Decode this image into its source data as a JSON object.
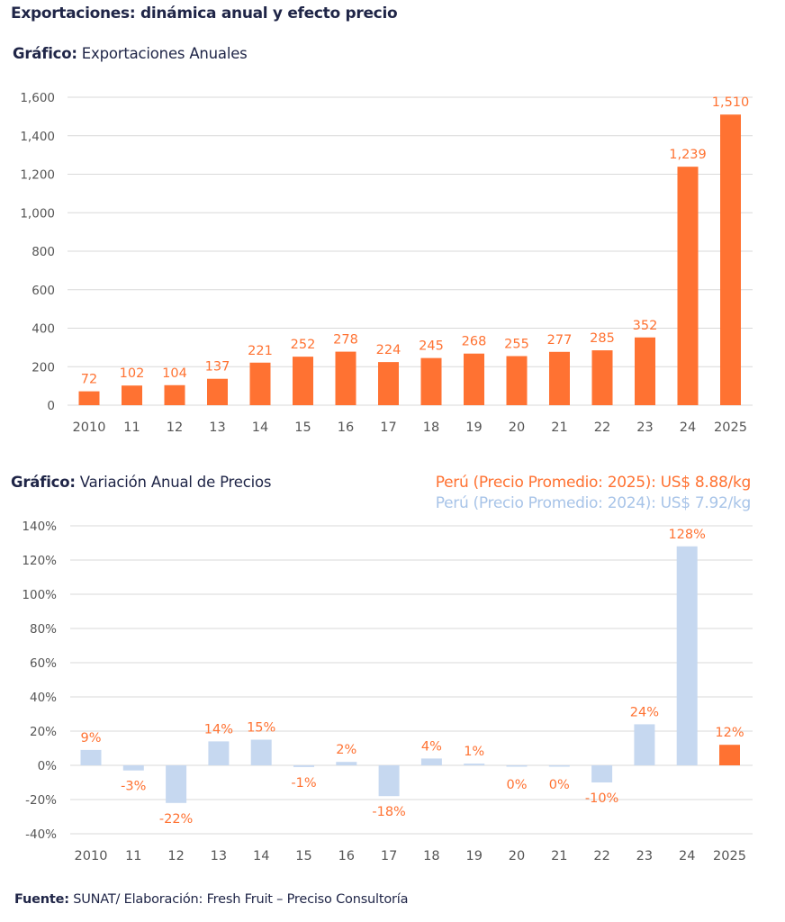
{
  "page": {
    "title": "Exportaciones: dinámica anual y efecto precio",
    "footer_label": "Fuente:",
    "footer_text": " SUNAT/ Elaboración: Fresh Fruit – Preciso Consultoría"
  },
  "colors": {
    "orange": "#ff7232",
    "light_blue": "#c6d8f0",
    "legend_blue": "#a8c4e8",
    "grid": "#d9d9d9",
    "axis_text": "#555555",
    "title_navy": "#1f2547"
  },
  "chart_data": [
    {
      "type": "bar",
      "title_prefix": "Gráfico:",
      "title": " Exportaciones Anuales",
      "xlabel": "",
      "ylabel": "",
      "ylim": [
        0,
        1600
      ],
      "yticks": [
        0,
        200,
        400,
        600,
        800,
        1000,
        1200,
        1400,
        1600
      ],
      "ytick_labels": [
        "0",
        "200",
        "400",
        "600",
        "800",
        "1,000",
        "1,200",
        "1,400",
        "1,600"
      ],
      "grid": true,
      "categories": [
        "2010",
        "11",
        "12",
        "13",
        "14",
        "15",
        "16",
        "17",
        "18",
        "19",
        "20",
        "21",
        "22",
        "23",
        "24",
        "2025"
      ],
      "values": [
        72,
        102,
        104,
        137,
        221,
        252,
        278,
        224,
        245,
        268,
        255,
        277,
        285,
        352,
        1239,
        1510
      ],
      "data_labels": [
        "72",
        "102",
        "104",
        "137",
        "221",
        "252",
        "278",
        "224",
        "245",
        "268",
        "255",
        "277",
        "285",
        "352",
        "1,239",
        "1,510"
      ],
      "bar_color": "#ff7232"
    },
    {
      "type": "bar",
      "title_prefix": "Gráfico:",
      "title": " Variación Anual de Precios",
      "xlabel": "",
      "ylabel": "",
      "ylim": [
        -40,
        140
      ],
      "yticks": [
        -40,
        -20,
        0,
        20,
        40,
        60,
        80,
        100,
        120,
        140
      ],
      "ytick_labels": [
        "-40%",
        "-20%",
        "0%",
        "20%",
        "40%",
        "60%",
        "80%",
        "100%",
        "120%",
        "140%"
      ],
      "grid": true,
      "categories": [
        "2010",
        "11",
        "12",
        "13",
        "14",
        "15",
        "16",
        "17",
        "18",
        "19",
        "20",
        "21",
        "22",
        "23",
        "24",
        "2025"
      ],
      "values": [
        9,
        -3,
        -22,
        14,
        15,
        -1,
        2,
        -18,
        4,
        1,
        -0.4,
        -0.4,
        -10,
        24,
        128,
        12
      ],
      "data_labels": [
        "9%",
        "-3%",
        "-22%",
        "14%",
        "15%",
        "-1%",
        "2%",
        "-18%",
        "4%",
        "1%",
        "0%",
        "0%",
        "-10%",
        "24%",
        "128%",
        "12%"
      ],
      "bar_colors": [
        "#c6d8f0",
        "#c6d8f0",
        "#c6d8f0",
        "#c6d8f0",
        "#c6d8f0",
        "#c6d8f0",
        "#c6d8f0",
        "#c6d8f0",
        "#c6d8f0",
        "#c6d8f0",
        "#c6d8f0",
        "#c6d8f0",
        "#c6d8f0",
        "#c6d8f0",
        "#c6d8f0",
        "#ff7232"
      ],
      "legend": [
        {
          "text": "Perú (Precio Promedio: 2025): US$ 8.88/kg",
          "color": "#ff7232"
        },
        {
          "text": "Perú (Precio Promedio: 2024): US$ 7.92/kg",
          "color": "#a8c4e8"
        }
      ],
      "legend_position": "top-right"
    }
  ]
}
